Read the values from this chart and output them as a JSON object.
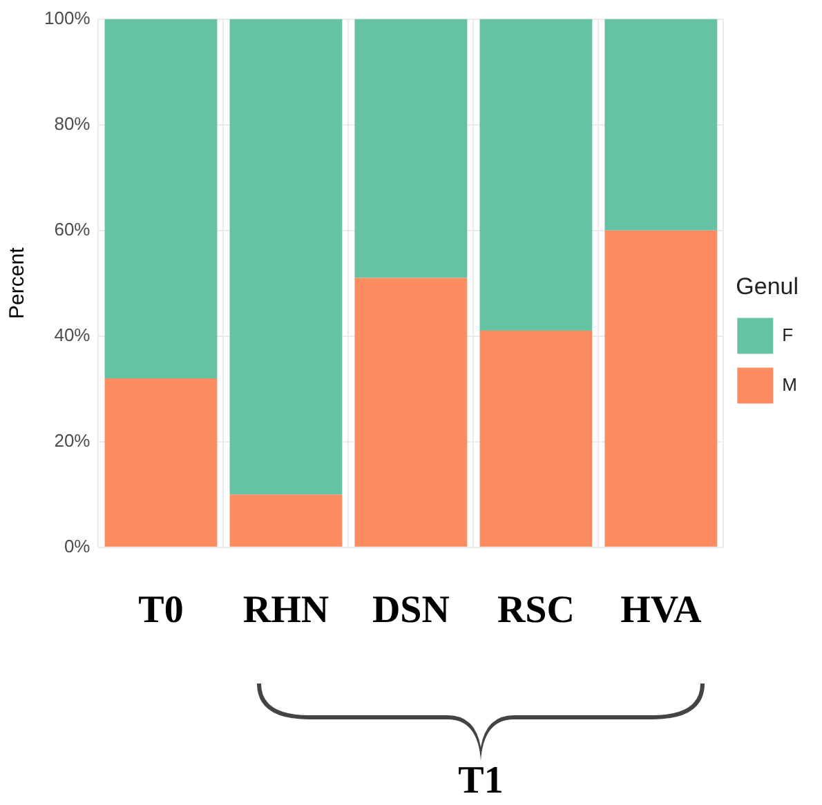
{
  "chart_data": {
    "type": "bar",
    "stacked": true,
    "ylabel": "Percent",
    "legend_title": "Genul",
    "legend": "right",
    "grid": true,
    "categories": [
      "T0",
      "RHN",
      "DSN",
      "RSC",
      "HVA"
    ],
    "series": [
      {
        "name": "M",
        "color": "#fc8d62",
        "values": [
          32,
          10,
          51,
          41,
          60
        ]
      },
      {
        "name": "F",
        "color": "#66c2a5",
        "values": [
          68,
          90,
          49,
          59,
          40
        ]
      }
    ],
    "ylim": [
      0,
      100
    ],
    "yticks": [
      {
        "value": 0,
        "label": "0%"
      },
      {
        "value": 20,
        "label": "20%"
      },
      {
        "value": 40,
        "label": "40%"
      },
      {
        "value": 60,
        "label": "60%"
      },
      {
        "value": 80,
        "label": "80%"
      },
      {
        "value": 100,
        "label": "100%"
      }
    ],
    "annotations": [
      "T1"
    ]
  }
}
